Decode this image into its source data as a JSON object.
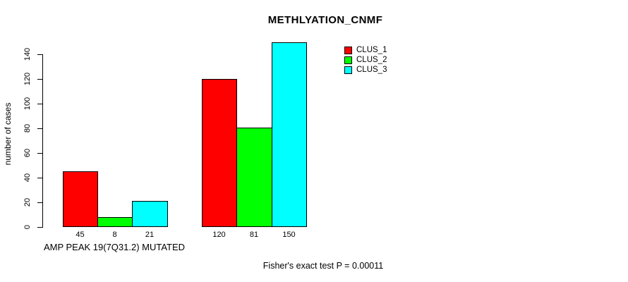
{
  "title": "METHLYATION_CNMF",
  "footer": "Fisher's exact test P = 0.00011",
  "y_axis": {
    "label": "number of cases",
    "ticks": [
      0,
      20,
      40,
      60,
      80,
      100,
      120,
      140
    ]
  },
  "legend": {
    "items": [
      {
        "label": "CLUS_1",
        "color": "#ff0000"
      },
      {
        "label": "CLUS_2",
        "color": "#00ff00"
      },
      {
        "label": "CLUS_3",
        "color": "#00ffff"
      }
    ]
  },
  "chart_data": {
    "type": "bar",
    "title": "METHLYATION_CNMF",
    "xlabel": "",
    "ylabel": "number of cases",
    "ylim": [
      0,
      150
    ],
    "yticks": [
      0,
      20,
      40,
      60,
      80,
      100,
      120,
      140
    ],
    "grid": false,
    "legend_position": "top-right",
    "categories": [
      "AMP PEAK 19(7Q31.2) MUTATED",
      ""
    ],
    "series": [
      {
        "name": "CLUS_1",
        "color": "#ff0000",
        "values": [
          45,
          120
        ]
      },
      {
        "name": "CLUS_2",
        "color": "#00ff00",
        "values": [
          8,
          81
        ]
      },
      {
        "name": "CLUS_3",
        "color": "#00ffff",
        "values": [
          21,
          150
        ]
      }
    ],
    "bar_value_labels": [
      [
        45,
        8,
        21
      ],
      [
        120,
        81,
        150
      ]
    ],
    "annotation": "Fisher's exact test P = 0.00011"
  }
}
